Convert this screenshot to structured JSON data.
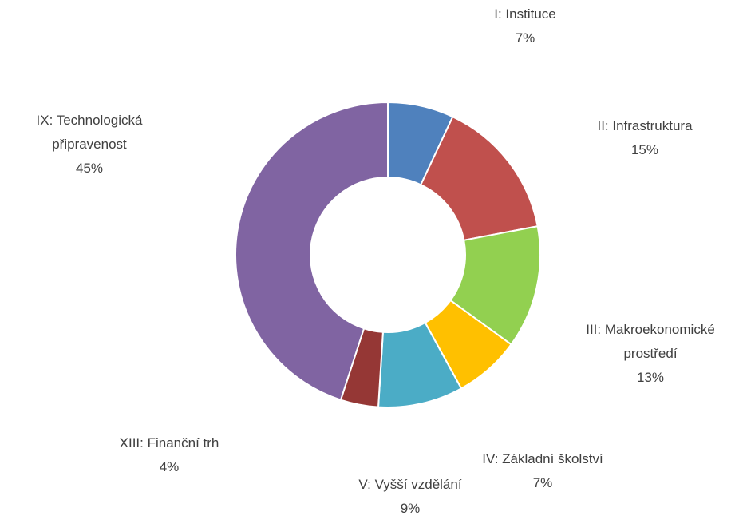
{
  "chart_data": {
    "type": "donut",
    "categories": [
      "I: Instituce",
      "II: Infrastruktura",
      "III: Makroekonomické prostředí",
      "IV: Základní školství",
      "V: Vyšší vzdělání",
      "XIII: Finanční trh",
      "IX: Technologická připravenost"
    ],
    "values": [
      7,
      15,
      13,
      7,
      9,
      4,
      45
    ],
    "value_labels": [
      "7%",
      "15%",
      "13%",
      "7%",
      "9%",
      "4%",
      "45%"
    ],
    "colors": [
      "#4f81bd",
      "#c0504d",
      "#92d050",
      "#ffc000",
      "#4bacc6",
      "#953735",
      "#8064a2"
    ]
  }
}
